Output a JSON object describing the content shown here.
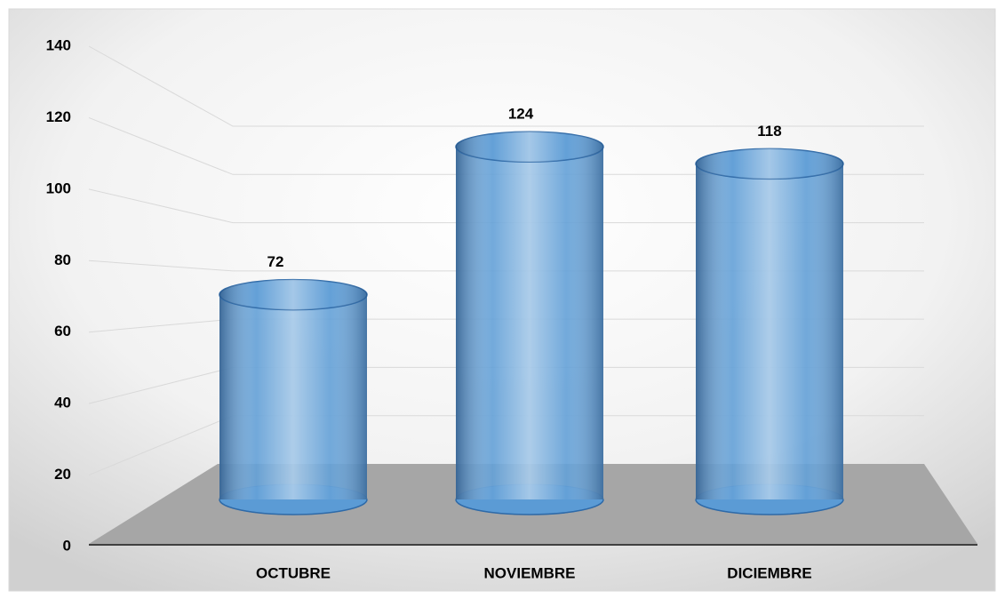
{
  "chart_data": {
    "type": "bar",
    "categories": [
      "OCTUBRE",
      "NOVIEMBRE",
      "DICIEMBRE"
    ],
    "values": [
      72,
      124,
      118
    ],
    "color": "#5b9bd5",
    "ylim": [
      0,
      140
    ],
    "yticks": [
      0,
      20,
      40,
      60,
      80,
      100,
      120,
      140
    ],
    "grid": true
  }
}
